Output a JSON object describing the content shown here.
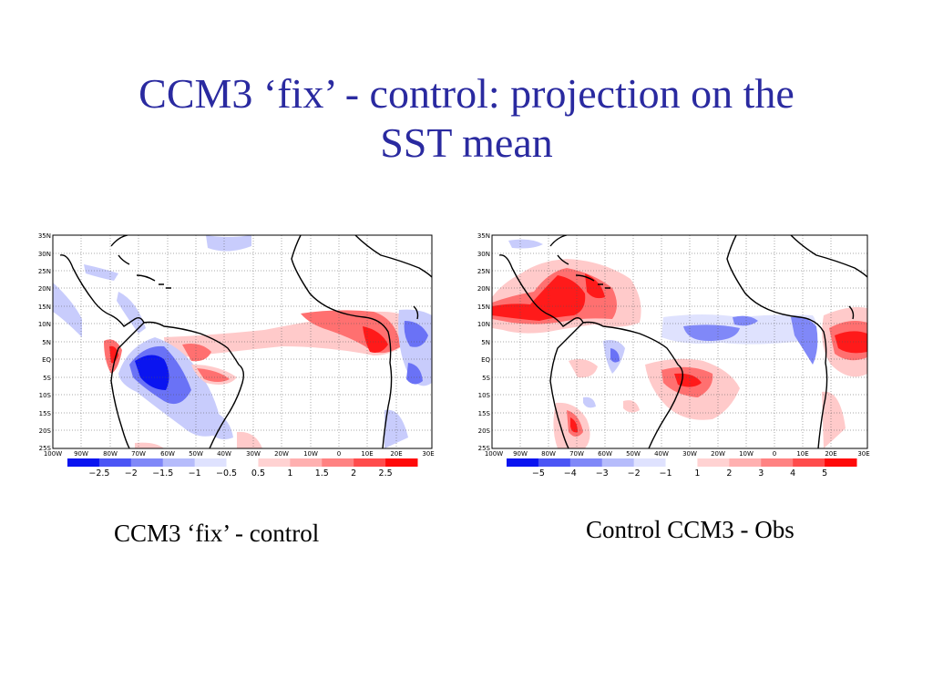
{
  "slide": {
    "title_line1": "CCM3 ‘fix’ - control: projection on the",
    "title_line2": "SST mean",
    "title_color": "#2a2aa0"
  },
  "lat_labels": [
    "35N",
    "30N",
    "25N",
    "20N",
    "15N",
    "10N",
    "5N",
    "EQ",
    "5S",
    "10S",
    "15S",
    "20S",
    "25S"
  ],
  "lon_labels": [
    "100W",
    "90W",
    "80W",
    "70W",
    "60W",
    "50W",
    "40W",
    "30W",
    "20W",
    "10W",
    "0",
    "10E",
    "20E",
    "30E"
  ],
  "maps": [
    {
      "caption": "CCM3 ‘fix’ - control",
      "colorbar": {
        "colors": [
          "#0a14f0",
          "#4b55f5",
          "#8088f8",
          "#b6bcfb",
          "#dfe2fe",
          "#ffffff",
          "#ffd2d2",
          "#ffb0b0",
          "#ff8282",
          "#ff4c4c",
          "#ff0a0a"
        ],
        "labels": [
          "−2.5",
          "−2",
          "−1.5",
          "−1",
          "−0.5",
          "0.5",
          "1",
          "1.5",
          "2",
          "2.5"
        ]
      }
    },
    {
      "caption": "Control CCM3 - Obs",
      "colorbar": {
        "colors": [
          "#0a14f0",
          "#4b55f5",
          "#8088f8",
          "#b6bcfb",
          "#dfe2fe",
          "#ffffff",
          "#ffd2d2",
          "#ffb0b0",
          "#ff8282",
          "#ff4c4c",
          "#ff0a0a"
        ],
        "labels": [
          "−5",
          "−4",
          "−3",
          "−2",
          "−1",
          "1",
          "2",
          "3",
          "4",
          "5"
        ]
      }
    }
  ],
  "palette": {
    "blue_strong": "#0a14f0",
    "blue_mid": "#6a72f6",
    "blue_light": "#c8ccfc",
    "red_strong": "#ff1a1a",
    "red_mid": "#ff7070",
    "red_light": "#ffcaca"
  }
}
